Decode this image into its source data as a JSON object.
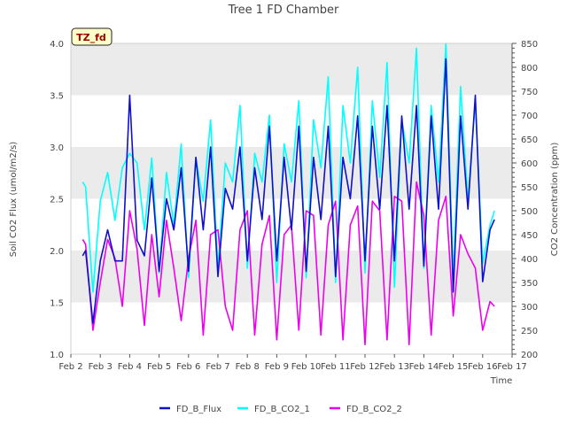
{
  "chart_data": {
    "type": "line",
    "title": "Tree 1 FD Chamber",
    "site_badge": "TZ_fd",
    "xlabel": "Time",
    "ylabel_left": "Soil CO2 Flux (umol/m2/s)",
    "ylabel_right": "CO2 Concentration (ppm)",
    "x_ticks": [
      "Feb 2",
      "Feb 3",
      "Feb 4",
      "Feb 5",
      "Feb 6",
      "Feb 7",
      "Feb 8",
      "Feb 9",
      "Feb 10",
      "Feb 11",
      "Feb 12",
      "Feb 13",
      "Feb 14",
      "Feb 15",
      "Feb 16",
      "Feb 17"
    ],
    "xlim": [
      "Feb 2",
      "Feb 17"
    ],
    "y_left_ticks": [
      "1.0",
      "1.5",
      "2.0",
      "2.5",
      "3.0",
      "3.5",
      "4.0"
    ],
    "y_left_lim": [
      1.0,
      4.0
    ],
    "y_right_ticks": [
      "200",
      "250",
      "300",
      "350",
      "400",
      "450",
      "500",
      "550",
      "600",
      "650",
      "700",
      "750",
      "800",
      "850"
    ],
    "y_right_lim": [
      200,
      850
    ],
    "grid": "horizontal bands",
    "legend_position": "bottom-center",
    "colors": {
      "flux": "#1010cc",
      "co2_1": "#00ffff",
      "co2_2": "#ee00ee",
      "band": "#ebebeb"
    },
    "x_days": [
      2.4,
      2.5,
      2.75,
      3.0,
      3.25,
      3.5,
      3.75,
      4.0,
      4.25,
      4.5,
      4.75,
      5.0,
      5.25,
      5.5,
      5.75,
      6.0,
      6.25,
      6.5,
      6.75,
      7.0,
      7.25,
      7.5,
      7.75,
      8.0,
      8.25,
      8.5,
      8.75,
      9.0,
      9.25,
      9.5,
      9.75,
      10.0,
      10.25,
      10.5,
      10.75,
      11.0,
      11.25,
      11.5,
      11.75,
      12.0,
      12.25,
      12.5,
      12.75,
      13.0,
      13.25,
      13.5,
      13.75,
      14.0,
      14.25,
      14.5,
      14.75,
      15.0,
      15.25,
      15.5,
      15.75,
      16.0,
      16.25,
      16.4
    ],
    "series": [
      {
        "name": "FD_B_Flux",
        "axis": "left",
        "values": [
          1.95,
          2.0,
          1.3,
          1.9,
          2.2,
          1.9,
          1.9,
          3.5,
          2.1,
          1.95,
          2.7,
          1.8,
          2.5,
          2.2,
          2.8,
          1.8,
          2.9,
          2.2,
          3.0,
          1.75,
          2.6,
          2.4,
          3.0,
          1.9,
          2.8,
          2.3,
          3.2,
          1.9,
          2.9,
          2.2,
          3.2,
          1.8,
          2.9,
          2.3,
          3.2,
          1.75,
          2.9,
          2.5,
          3.3,
          1.9,
          3.2,
          2.4,
          3.4,
          1.9,
          3.3,
          2.4,
          3.4,
          1.85,
          3.3,
          2.4,
          3.85,
          1.6,
          3.3,
          2.4,
          3.5,
          1.7,
          2.2,
          2.3
        ]
      },
      {
        "name": "FD_B_CO2_1",
        "axis": "right",
        "values": [
          560,
          550,
          330,
          520,
          580,
          480,
          590,
          620,
          600,
          460,
          610,
          370,
          580,
          470,
          640,
          360,
          610,
          520,
          690,
          380,
          600,
          560,
          720,
          380,
          620,
          560,
          700,
          350,
          640,
          560,
          730,
          360,
          690,
          590,
          780,
          350,
          720,
          600,
          800,
          370,
          730,
          570,
          810,
          340,
          690,
          600,
          840,
          380,
          720,
          560,
          850,
          360,
          760,
          520,
          730,
          390,
          470,
          500
        ]
      },
      {
        "name": "FD_B_CO2_2",
        "axis": "right",
        "values": [
          440,
          430,
          250,
          350,
          440,
          400,
          300,
          500,
          420,
          260,
          450,
          320,
          480,
          380,
          270,
          400,
          480,
          240,
          450,
          460,
          300,
          250,
          460,
          500,
          240,
          430,
          490,
          230,
          450,
          470,
          250,
          500,
          490,
          240,
          470,
          520,
          230,
          470,
          510,
          220,
          520,
          500,
          230,
          530,
          520,
          220,
          560,
          490,
          240,
          480,
          530,
          280,
          450,
          410,
          380,
          250,
          310,
          300
        ]
      }
    ]
  }
}
